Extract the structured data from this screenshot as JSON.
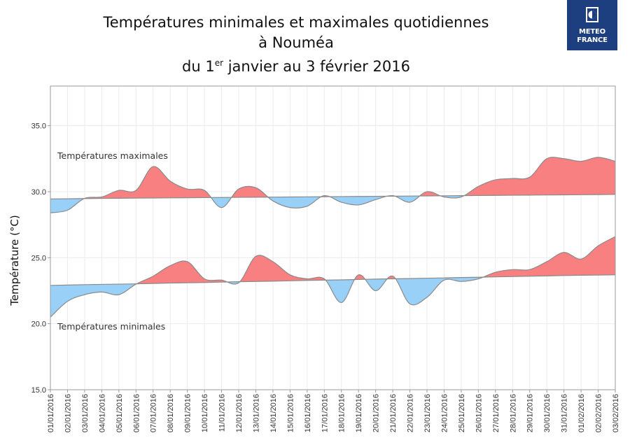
{
  "title": {
    "line1": "Températures minimales et maximales quotidiennes",
    "line2": "à Nouméa",
    "line3_pre": "du 1",
    "line3_sup": "er",
    "line3_post": " janvier au 3 février 2016"
  },
  "logo": {
    "line1": "METEO",
    "line2": "FRANCE",
    "icon": "meteo-france-logo-icon"
  },
  "chart_data": {
    "type": "area",
    "ylabel": "Température (°C)",
    "xlabel": "",
    "ylim": [
      15.0,
      38.0
    ],
    "yticks": [
      "15.0",
      "20.0",
      "25.0",
      "30.0",
      "35.0"
    ],
    "grid": true,
    "colors": {
      "above": "#f88080",
      "below": "#99d0f8",
      "line": "#8a8a8a",
      "grid": "#ececec",
      "frame": "#9a9a9a"
    },
    "x": [
      "01/01/2016",
      "02/01/2016",
      "03/01/2016",
      "04/01/2016",
      "05/01/2016",
      "06/01/2016",
      "07/01/2016",
      "08/01/2016",
      "09/01/2016",
      "10/01/2016",
      "11/01/2016",
      "12/01/2016",
      "13/01/2016",
      "14/01/2016",
      "15/01/2016",
      "16/01/2016",
      "17/01/2016",
      "18/01/2016",
      "19/01/2016",
      "20/01/2016",
      "21/01/2016",
      "22/01/2016",
      "23/01/2016",
      "24/01/2016",
      "25/01/2016",
      "26/01/2016",
      "27/01/2016",
      "28/01/2016",
      "29/01/2016",
      "30/01/2016",
      "31/01/2016",
      "01/02/2016",
      "02/02/2016",
      "03/02/2016"
    ],
    "series": [
      {
        "name": "Températures maximales",
        "values": [
          28.4,
          28.6,
          29.5,
          29.6,
          30.1,
          30.1,
          31.9,
          30.8,
          30.2,
          30.1,
          28.8,
          30.2,
          30.3,
          29.3,
          28.8,
          28.9,
          29.7,
          29.2,
          29.0,
          29.4,
          29.7,
          29.2,
          30.0,
          29.6,
          29.6,
          30.4,
          30.9,
          31.0,
          31.1,
          32.5,
          32.5,
          32.3,
          32.6,
          32.3
        ],
        "normal": [
          29.45,
          29.46,
          29.48,
          29.49,
          29.5,
          29.51,
          29.52,
          29.53,
          29.54,
          29.55,
          29.56,
          29.57,
          29.58,
          29.59,
          29.6,
          29.61,
          29.62,
          29.63,
          29.64,
          29.65,
          29.66,
          29.67,
          29.68,
          29.69,
          29.7,
          29.71,
          29.72,
          29.73,
          29.74,
          29.75,
          29.76,
          29.77,
          29.78,
          29.8
        ]
      },
      {
        "name": "Températures minimales",
        "values": [
          20.5,
          21.7,
          22.2,
          22.4,
          22.2,
          23.0,
          23.6,
          24.4,
          24.7,
          23.4,
          23.3,
          23.1,
          25.1,
          24.7,
          23.7,
          23.4,
          23.4,
          21.6,
          23.7,
          22.5,
          23.6,
          21.5,
          22.0,
          23.3,
          23.2,
          23.4,
          23.9,
          24.1,
          24.1,
          24.7,
          25.4,
          24.9,
          25.9,
          26.6
        ],
        "normal": [
          22.9,
          22.93,
          22.96,
          22.98,
          23.0,
          23.02,
          23.05,
          23.08,
          23.1,
          23.12,
          23.15,
          23.18,
          23.2,
          23.22,
          23.25,
          23.28,
          23.3,
          23.32,
          23.35,
          23.38,
          23.4,
          23.42,
          23.45,
          23.47,
          23.5,
          23.52,
          23.55,
          23.57,
          23.6,
          23.62,
          23.65,
          23.67,
          23.68,
          23.7
        ]
      }
    ]
  }
}
